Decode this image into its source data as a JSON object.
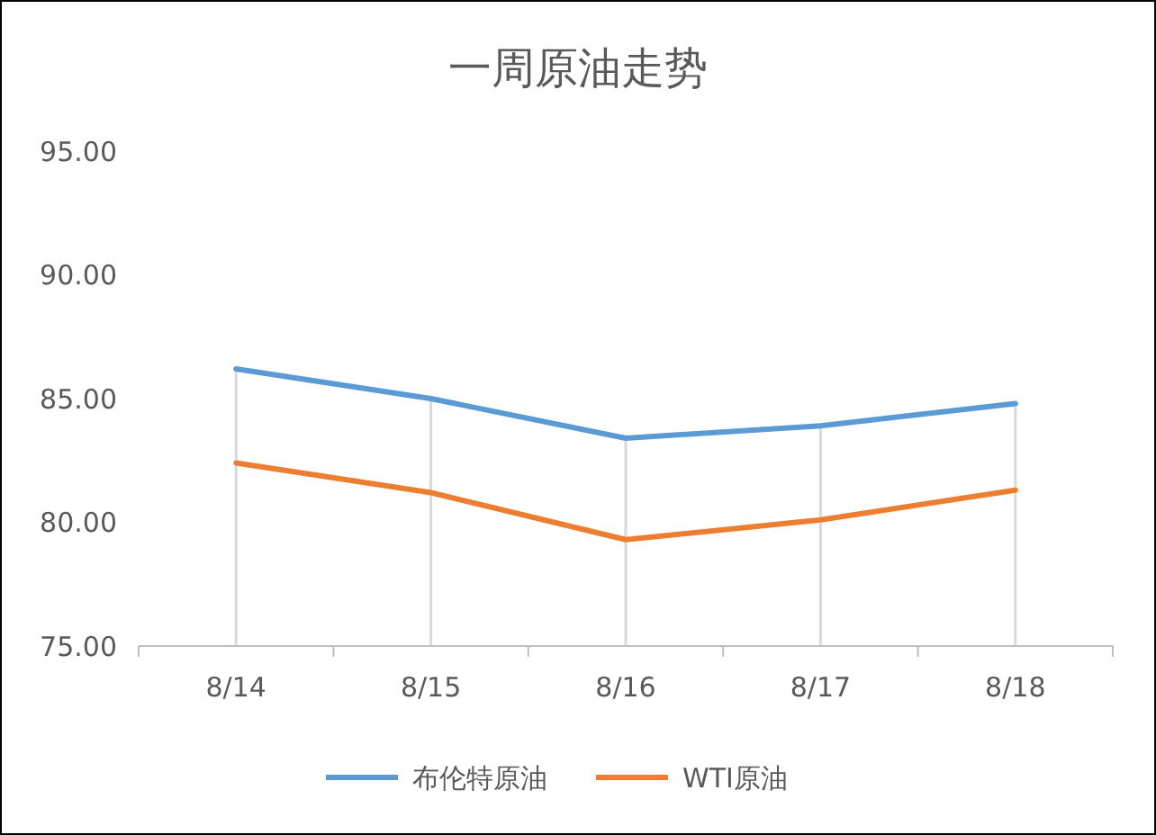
{
  "chart_data": {
    "type": "line",
    "title": "一周原油走势",
    "categories": [
      "8/14",
      "8/15",
      "8/16",
      "8/17",
      "8/18"
    ],
    "series": [
      {
        "name": "布伦特原油",
        "color": "#5b9bd5",
        "values": [
          86.2,
          85.0,
          83.4,
          83.9,
          84.8
        ]
      },
      {
        "name": "WTI原油",
        "color": "#ed7d31",
        "values": [
          82.4,
          81.2,
          79.3,
          80.1,
          81.3
        ]
      }
    ],
    "ylim": [
      75,
      95
    ],
    "yticks": [
      {
        "value": 75,
        "label": "75.00"
      },
      {
        "value": 80,
        "label": "80.00"
      },
      {
        "value": 85,
        "label": "85.00"
      },
      {
        "value": 90,
        "label": "90.00"
      },
      {
        "value": 95,
        "label": "95.00"
      }
    ],
    "legend": "bottom",
    "marker": "none",
    "line_style": "solid"
  }
}
